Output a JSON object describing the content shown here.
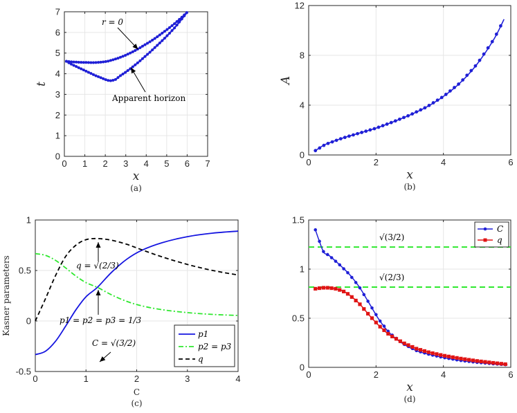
{
  "chart_data": [
    {
      "id": "a",
      "type": "scatter",
      "caption": "(a)",
      "xlabel": "x",
      "ylabel": "t",
      "xlim": [
        0,
        7
      ],
      "ylim": [
        0,
        7
      ],
      "xticks": [
        "0",
        "1",
        "2",
        "3",
        "4",
        "5",
        "6",
        "7"
      ],
      "yticks": [
        "0",
        "1",
        "2",
        "3",
        "4",
        "5",
        "6",
        "7"
      ],
      "color": "#1f1fd6",
      "series": [
        {
          "name": "r = 0",
          "x": [
            0.1,
            0.3,
            0.6,
            0.9,
            1.2,
            1.5,
            1.8,
            2.1,
            2.4,
            2.7,
            3.0,
            3.3,
            3.6,
            3.9,
            4.2,
            4.5,
            4.8,
            5.1,
            5.4,
            5.7,
            6.0
          ],
          "y": [
            4.6,
            4.58,
            4.56,
            4.55,
            4.54,
            4.54,
            4.56,
            4.6,
            4.68,
            4.78,
            4.9,
            5.04,
            5.2,
            5.38,
            5.56,
            5.76,
            5.98,
            6.2,
            6.44,
            6.7,
            6.98
          ]
        },
        {
          "name": "Apparent horizon",
          "x": [
            0.1,
            0.3,
            0.6,
            0.9,
            1.2,
            1.5,
            1.8,
            2.1,
            2.3,
            2.5,
            2.7,
            3.0,
            3.3,
            3.6,
            3.9,
            4.2,
            4.5,
            4.8,
            5.1,
            5.4,
            5.7,
            6.0
          ],
          "y": [
            4.6,
            4.48,
            4.34,
            4.2,
            4.06,
            3.92,
            3.8,
            3.68,
            3.66,
            3.72,
            3.88,
            4.08,
            4.3,
            4.54,
            4.8,
            5.06,
            5.34,
            5.62,
            5.92,
            6.24,
            6.6,
            6.98
          ]
        }
      ],
      "annotations": [
        {
          "label": "r = 0"
        },
        {
          "label": "Apparent horizon"
        }
      ]
    },
    {
      "id": "b",
      "type": "line",
      "caption": "(b)",
      "xlabel": "x",
      "ylabel": "A",
      "xlim": [
        0,
        6
      ],
      "ylim": [
        0,
        12
      ],
      "xticks": [
        "0",
        "2",
        "4",
        "6"
      ],
      "yticks": [
        "0",
        "4",
        "8",
        "12"
      ],
      "color": "#1f1fd6",
      "series": [
        {
          "name": "A",
          "x": [
            0.2,
            0.5,
            1.0,
            1.5,
            2.0,
            2.5,
            3.0,
            3.5,
            4.0,
            4.5,
            5.0,
            5.5,
            5.8
          ],
          "y": [
            0.35,
            0.85,
            1.35,
            1.75,
            2.15,
            2.65,
            3.2,
            3.85,
            4.7,
            5.8,
            7.3,
            9.3,
            10.9
          ]
        }
      ]
    },
    {
      "id": "c",
      "type": "line",
      "caption": "(c)",
      "xlabel": "C",
      "ylabel": "Kasner parameters",
      "xlim": [
        0,
        4
      ],
      "ylim": [
        -0.5,
        1
      ],
      "xticks": [
        "0",
        "1",
        "2",
        "3",
        "4"
      ],
      "yticks": [
        "-0.5",
        "0",
        "0.5",
        "1"
      ],
      "series": [
        {
          "name": "p1",
          "color": "#1515e0",
          "style": "solid",
          "x": [
            0,
            0.2,
            0.4,
            0.6,
            0.8,
            1.0,
            1.2247,
            1.5,
            1.8,
            2.1,
            2.5,
            3.0,
            3.5,
            4.0
          ],
          "y": [
            -0.333,
            -0.3,
            -0.2,
            -0.05,
            0.11,
            0.24,
            0.333,
            0.48,
            0.61,
            0.7,
            0.775,
            0.835,
            0.87,
            0.89
          ]
        },
        {
          "name": "p2 = p3",
          "color": "#2ee82e",
          "style": "dashdot",
          "x": [
            0,
            0.2,
            0.4,
            0.6,
            0.8,
            1.0,
            1.2247,
            1.5,
            1.8,
            2.1,
            2.5,
            3.0,
            3.5,
            4.0
          ],
          "y": [
            0.667,
            0.65,
            0.6,
            0.525,
            0.445,
            0.38,
            0.333,
            0.26,
            0.195,
            0.15,
            0.112,
            0.083,
            0.065,
            0.055
          ]
        },
        {
          "name": "q",
          "color": "#000000",
          "style": "dashed",
          "x": [
            0,
            0.2,
            0.4,
            0.6,
            0.8,
            1.0,
            1.2247,
            1.5,
            1.8,
            2.1,
            2.5,
            3.0,
            3.5,
            4.0
          ],
          "y": [
            0.0,
            0.22,
            0.45,
            0.64,
            0.75,
            0.805,
            0.816,
            0.8,
            0.76,
            0.705,
            0.635,
            0.56,
            0.5,
            0.455
          ]
        }
      ],
      "legend": [
        "p1",
        "p2 = p3",
        "q"
      ],
      "annotations": [
        {
          "label": "q = √(2/3)"
        },
        {
          "label": "p1 = p2 = p3 = 1/3"
        },
        {
          "label": "C = √(3/2)"
        }
      ]
    },
    {
      "id": "d",
      "type": "line",
      "caption": "(d)",
      "xlabel": "x",
      "ylabel": "",
      "xlim": [
        0,
        6
      ],
      "ylim": [
        0,
        1.5
      ],
      "xticks": [
        "0",
        "2",
        "4",
        "6"
      ],
      "yticks": [
        "0",
        "0.5",
        "1",
        "1.5"
      ],
      "series": [
        {
          "name": "C",
          "color": "#1f1fd6",
          "marker": "circle",
          "x": [
            0.2,
            0.3,
            0.45,
            0.6,
            0.9,
            1.2,
            1.5,
            1.8,
            2.1,
            2.4,
            2.8,
            3.2,
            3.6,
            4.0,
            4.5,
            5.0,
            5.5,
            5.9
          ],
          "y": [
            1.4,
            1.3,
            1.17,
            1.14,
            1.05,
            0.95,
            0.82,
            0.65,
            0.48,
            0.35,
            0.24,
            0.17,
            0.13,
            0.1,
            0.07,
            0.05,
            0.035,
            0.025
          ]
        },
        {
          "name": "q",
          "color": "#e01414",
          "marker": "square",
          "x": [
            0.2,
            0.4,
            0.6,
            0.8,
            1.0,
            1.2,
            1.5,
            1.8,
            2.1,
            2.4,
            2.8,
            3.2,
            3.6,
            4.0,
            4.5,
            5.0,
            5.5,
            5.9
          ],
          "y": [
            0.8,
            0.81,
            0.81,
            0.8,
            0.78,
            0.74,
            0.65,
            0.53,
            0.42,
            0.33,
            0.25,
            0.19,
            0.15,
            0.12,
            0.09,
            0.065,
            0.045,
            0.03
          ]
        }
      ],
      "hlines": [
        {
          "label": "√(3/2)",
          "y": 1.2247,
          "color": "#2ee82e"
        },
        {
          "label": "√(2/3)",
          "y": 0.8165,
          "color": "#2ee82e"
        }
      ],
      "legend": [
        "C",
        "q"
      ]
    }
  ]
}
